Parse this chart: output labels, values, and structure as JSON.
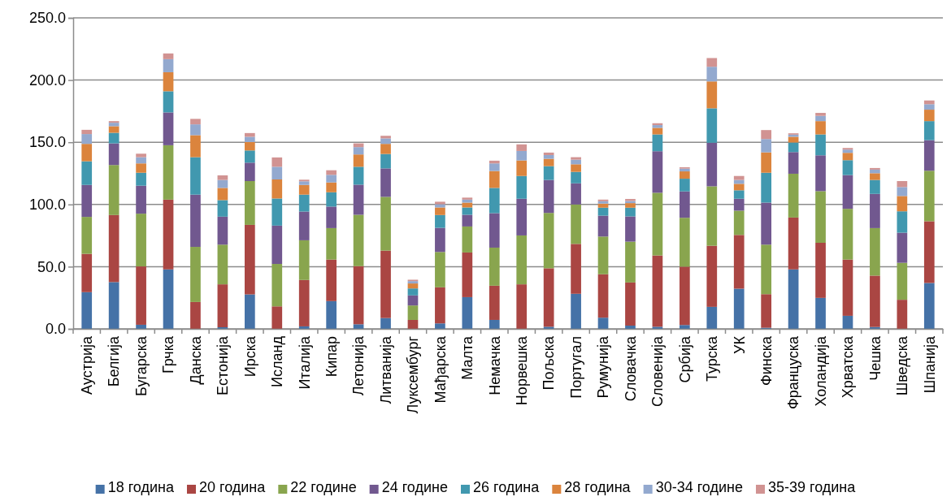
{
  "chart_data": {
    "type": "bar",
    "stacked": true,
    "categories": [
      "Аустрија",
      "Белгија",
      "Бугарска",
      "Грчка",
      "Данска",
      "Естонија",
      "Ирска",
      "Исланд",
      "Италија",
      "Кипар",
      "Летонија",
      "Литванија",
      "Луксембург",
      "Мађарска",
      "Малта",
      "Немачка",
      "Норвешка",
      "Пољска",
      "Португал",
      "Румунија",
      "Словачка",
      "Словенија",
      "Србија",
      "Турска",
      "УК",
      "Финска",
      "Француска",
      "Холандија",
      "Хрватска",
      "Чешка",
      "Шведска",
      "Шпанија"
    ],
    "series": [
      {
        "name": "18 година",
        "color": "#4572a7",
        "values": [
          29.5,
          37.6,
          3.3,
          47.8,
          null,
          1.3,
          27.7,
          0,
          2.0,
          22.3,
          3.7,
          8.7,
          0,
          4.4,
          25.5,
          7.2,
          0,
          1.7,
          28.2,
          9.0,
          2.6,
          1.7,
          3.1,
          17.7,
          32.3,
          0.9,
          47.8,
          24.9,
          10.5,
          1.5,
          null,
          36.9
        ]
      },
      {
        "name": "20 година",
        "color": "#aa4643",
        "values": [
          30.8,
          53.9,
          46.9,
          56.1,
          21.6,
          34.5,
          55.9,
          18.1,
          37.3,
          33.4,
          46.7,
          54.2,
          7.2,
          29.0,
          35.9,
          27.5,
          35.8,
          47.0,
          40.1,
          34.9,
          34.7,
          57.3,
          46.9,
          49.1,
          43.2,
          27.0,
          41.7,
          44.3,
          45.2,
          41.3,
          23.4,
          49.6
        ]
      },
      {
        "name": "22 године",
        "color": "#89a54e",
        "values": [
          29.7,
          40.2,
          42.4,
          43.7,
          44.3,
          31.9,
          35.2,
          34.1,
          31.9,
          25.3,
          41.3,
          43.2,
          11.6,
          28.4,
          20.9,
          30.6,
          39.3,
          44.5,
          31.7,
          30.3,
          32.8,
          50.4,
          39.3,
          47.8,
          19.5,
          39.8,
          35.2,
          41.5,
          40.8,
          38.2,
          29.7,
          40.6
        ]
      },
      {
        "name": "24 године",
        "color": "#71588f",
        "values": [
          25.7,
          17.4,
          22.5,
          26.4,
          42.0,
          22.5,
          14.8,
          30.8,
          23.1,
          17.3,
          24.2,
          22.9,
          8.1,
          19.4,
          9.4,
          27.7,
          29.5,
          26.5,
          17.0,
          16.8,
          20.3,
          33.4,
          21.2,
          35.0,
          9.6,
          33.8,
          17.4,
          28.8,
          27.1,
          27.5,
          24.2,
          24.6
        ]
      },
      {
        "name": "26 година",
        "color": "#4198af",
        "values": [
          19.0,
          8.5,
          10.4,
          17.0,
          30.1,
          13.3,
          9.8,
          21.8,
          13.6,
          11.5,
          14.4,
          11.6,
          5.6,
          10.3,
          5.9,
          20.3,
          18.3,
          11.1,
          9.2,
          6.4,
          7.0,
          13.5,
          10.2,
          27.7,
          6.8,
          24.0,
          7.7,
          16.8,
          12.0,
          11.2,
          17.2,
          15.3
        ]
      },
      {
        "name": "28 година",
        "color": "#db843d",
        "values": [
          14.0,
          5.3,
          7.5,
          15.3,
          17.7,
          9.8,
          6.8,
          15.3,
          7.8,
          7.9,
          9.9,
          8.1,
          4.0,
          6.1,
          3.9,
          13.6,
          12.5,
          5.9,
          6.1,
          3.3,
          3.7,
          5.3,
          5.9,
          21.6,
          5.2,
          16.4,
          4.6,
          10.7,
          5.9,
          5.4,
          12.3,
          9.2
        ]
      },
      {
        "name": "30-34 године",
        "color": "#93a9cf",
        "values": [
          7.9,
          2.8,
          5.0,
          10.5,
          8.7,
          6.4,
          4.2,
          10.2,
          2.9,
          6.1,
          5.9,
          4.4,
          1.9,
          2.6,
          2.4,
          6.1,
          7.6,
          3.0,
          3.7,
          1.9,
          1.7,
          2.2,
          2.2,
          11.8,
          3.1,
          10.7,
          1.7,
          4.2,
          2.6,
          2.9,
          7.2,
          4.4
        ]
      },
      {
        "name": "35-39 година",
        "color": "#d19392",
        "values": [
          3.4,
          1.3,
          2.8,
          4.6,
          4.4,
          3.7,
          3.0,
          7.5,
          1.3,
          3.7,
          3.0,
          2.1,
          1.1,
          2.0,
          1.6,
          2.2,
          5.3,
          2.0,
          2.0,
          1.3,
          1.6,
          1.5,
          1.1,
          7.0,
          3.2,
          7.2,
          1.1,
          2.4,
          1.3,
          1.3,
          4.8,
          3.0
        ]
      }
    ],
    "ylim": [
      0,
      250
    ],
    "yticks": [
      {
        "value": 0,
        "label": "0.0"
      },
      {
        "value": 50,
        "label": "50.0"
      },
      {
        "value": 100,
        "label": "100.0"
      },
      {
        "value": 150,
        "label": "150.0"
      },
      {
        "value": 200,
        "label": "200.0"
      },
      {
        "value": 250,
        "label": "250.0"
      }
    ],
    "grid": "y",
    "legend": "bottom"
  }
}
